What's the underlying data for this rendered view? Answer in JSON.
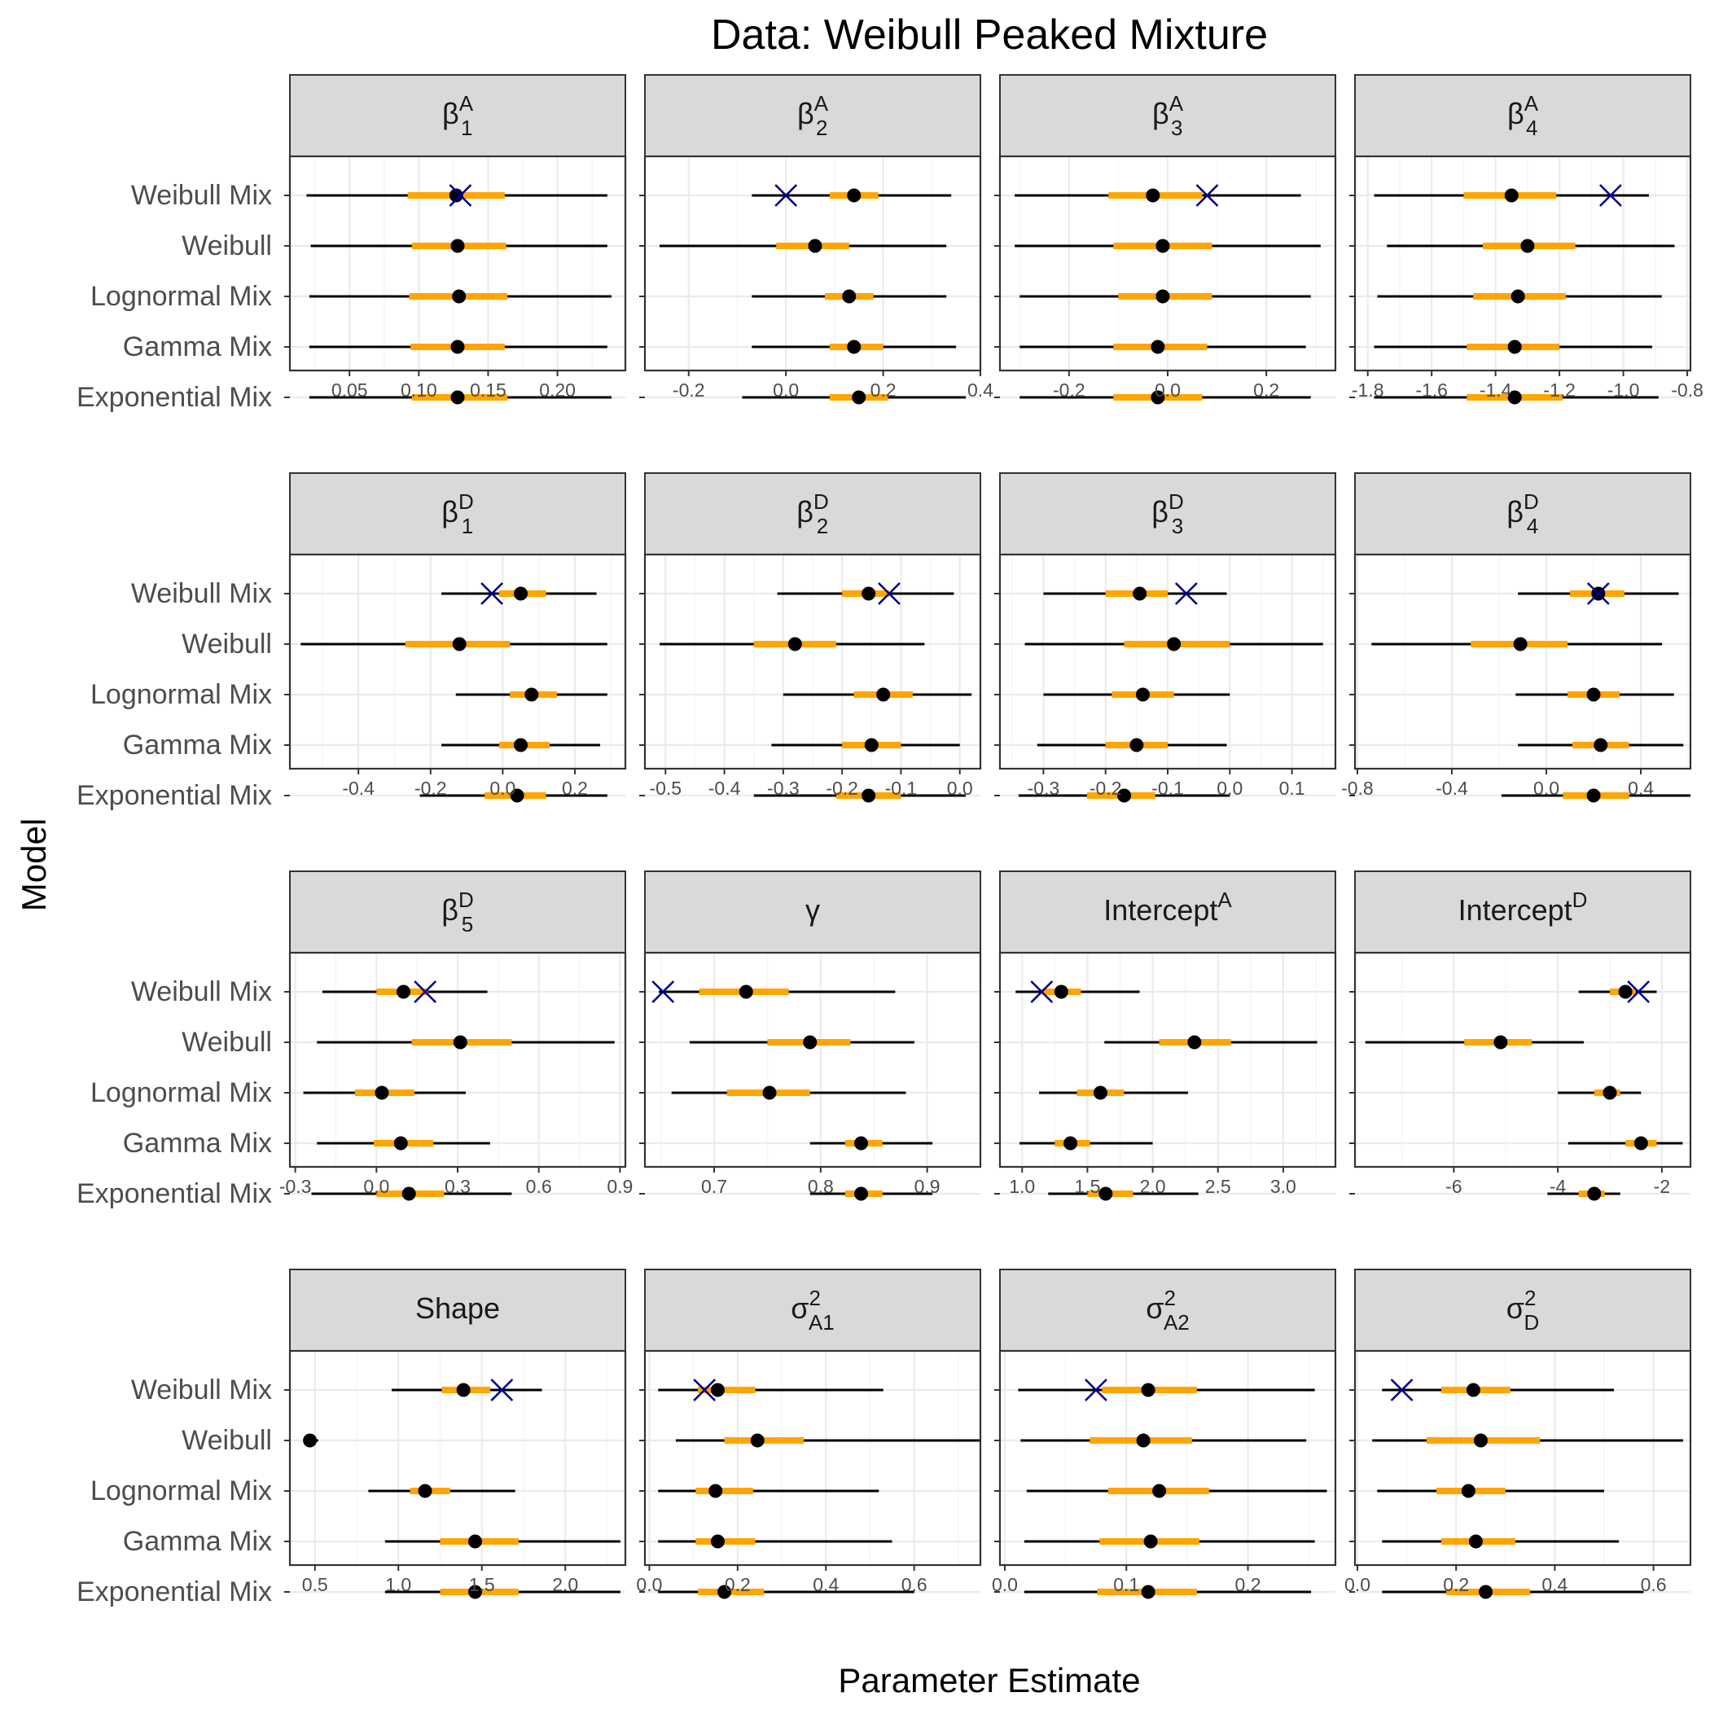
{
  "title": "Data: Weibull Peaked Mixture",
  "x_axis_title": "Parameter Estimate",
  "y_axis_title": "Model",
  "colors": {
    "interval_outer": "#000000",
    "interval_inner": "#FFA500",
    "point": "#000000",
    "true_value": "#00008B",
    "strip_fill": "#D9D9D9",
    "grid_major": "#EBEBEB",
    "grid_minor": "#F5F5F5"
  },
  "chart_data": {
    "type": "interval",
    "models": [
      "Weibull Mix",
      "Weibull",
      "Lognormal Mix",
      "Gamma Mix",
      "Exponential Mix"
    ],
    "panels": [
      {
        "label": "β",
        "sup": "A",
        "sub": "1",
        "xlim": [
          0.007,
          0.249
        ],
        "ticks": [
          0.05,
          0.1,
          0.15,
          0.2
        ],
        "tick_labels": [
          "0.05",
          "0.10",
          "0.15",
          "0.20"
        ],
        "true": 0.13,
        "rows": [
          [
            0.019,
            0.092,
            0.127,
            0.162,
            0.236
          ],
          [
            0.022,
            0.095,
            0.128,
            0.163,
            0.236
          ],
          [
            0.021,
            0.093,
            0.129,
            0.164,
            0.239
          ],
          [
            0.021,
            0.094,
            0.128,
            0.162,
            0.236
          ],
          [
            0.021,
            0.095,
            0.128,
            0.164,
            0.239
          ]
        ]
      },
      {
        "label": "β",
        "sup": "A",
        "sub": "2",
        "xlim": [
          -0.29,
          0.4
        ],
        "ticks": [
          -0.2,
          0.0,
          0.2,
          0.4
        ],
        "tick_labels": [
          "-0.2",
          "0.0",
          "0.2",
          "0.4"
        ],
        "true": 0.0,
        "rows": [
          [
            -0.07,
            0.09,
            0.14,
            0.19,
            0.34
          ],
          [
            -0.26,
            -0.02,
            0.06,
            0.13,
            0.33
          ],
          [
            -0.07,
            0.08,
            0.13,
            0.18,
            0.33
          ],
          [
            -0.07,
            0.09,
            0.14,
            0.2,
            0.35
          ],
          [
            -0.09,
            0.09,
            0.15,
            0.21,
            0.37
          ]
        ]
      },
      {
        "label": "β",
        "sup": "A",
        "sub": "3",
        "xlim": [
          -0.34,
          0.34
        ],
        "ticks": [
          -0.2,
          0.0,
          0.2
        ],
        "tick_labels": [
          "-0.2",
          "0.0",
          "0.2"
        ],
        "true": 0.08,
        "rows": [
          [
            -0.31,
            -0.12,
            -0.03,
            0.07,
            0.27
          ],
          [
            -0.31,
            -0.11,
            -0.01,
            0.09,
            0.31
          ],
          [
            -0.3,
            -0.1,
            -0.01,
            0.09,
            0.29
          ],
          [
            -0.3,
            -0.11,
            -0.02,
            0.08,
            0.28
          ],
          [
            -0.3,
            -0.11,
            -0.02,
            0.07,
            0.29
          ]
        ]
      },
      {
        "label": "β",
        "sup": "A",
        "sub": "4",
        "xlim": [
          -1.84,
          -0.79
        ],
        "ticks": [
          -1.8,
          -1.6,
          -1.4,
          -1.2,
          -1.0,
          -0.8
        ],
        "tick_labels": [
          "-1.8",
          "-1.6",
          "-1.4",
          "-1.2",
          "-1.0",
          "-0.8"
        ],
        "true": -1.04,
        "rows": [
          [
            -1.78,
            -1.5,
            -1.35,
            -1.21,
            -0.92
          ],
          [
            -1.74,
            -1.44,
            -1.3,
            -1.15,
            -0.84
          ],
          [
            -1.77,
            -1.47,
            -1.33,
            -1.18,
            -0.88
          ],
          [
            -1.78,
            -1.49,
            -1.34,
            -1.2,
            -0.91
          ],
          [
            -1.78,
            -1.49,
            -1.34,
            -1.19,
            -0.89
          ]
        ]
      },
      {
        "label": "β",
        "sup": "D",
        "sub": "1",
        "xlim": [
          -0.59,
          0.34
        ],
        "ticks": [
          -0.4,
          -0.2,
          0.0,
          0.2
        ],
        "tick_labels": [
          "-0.4",
          "-0.2",
          "0.0",
          "0.2"
        ],
        "true": -0.03,
        "rows": [
          [
            -0.17,
            -0.01,
            0.05,
            0.12,
            0.26
          ],
          [
            -0.56,
            -0.27,
            -0.12,
            0.02,
            0.29
          ],
          [
            -0.13,
            0.02,
            0.08,
            0.15,
            0.29
          ],
          [
            -0.17,
            -0.01,
            0.05,
            0.13,
            0.27
          ],
          [
            -0.23,
            -0.05,
            0.04,
            0.12,
            0.29
          ]
        ]
      },
      {
        "label": "β",
        "sup": "D",
        "sub": "2",
        "xlim": [
          -0.535,
          0.035
        ],
        "ticks": [
          -0.5,
          -0.4,
          -0.3,
          -0.2,
          -0.1,
          0.0
        ],
        "tick_labels": [
          "-0.5",
          "-0.4",
          "-0.3",
          "-0.2",
          "-0.1",
          "0.0"
        ],
        "true": -0.12,
        "rows": [
          [
            -0.31,
            -0.2,
            -0.155,
            -0.12,
            -0.01
          ],
          [
            -0.51,
            -0.35,
            -0.28,
            -0.21,
            -0.06
          ],
          [
            -0.3,
            -0.18,
            -0.13,
            -0.08,
            0.02
          ],
          [
            -0.32,
            -0.2,
            -0.15,
            -0.1,
            0.0
          ],
          [
            -0.35,
            -0.21,
            -0.155,
            -0.1,
            0.01
          ]
        ]
      },
      {
        "label": "β",
        "sup": "D",
        "sub": "3",
        "xlim": [
          -0.37,
          0.17
        ],
        "ticks": [
          -0.3,
          -0.2,
          -0.1,
          0.0,
          0.1
        ],
        "tick_labels": [
          "-0.3",
          "-0.2",
          "-0.1",
          "0.0",
          "0.1"
        ],
        "true": -0.07,
        "rows": [
          [
            -0.3,
            -0.2,
            -0.145,
            -0.1,
            -0.005
          ],
          [
            -0.33,
            -0.17,
            -0.09,
            0.0,
            0.15
          ],
          [
            -0.3,
            -0.19,
            -0.14,
            -0.09,
            0.0
          ],
          [
            -0.31,
            -0.2,
            -0.15,
            -0.1,
            -0.005
          ],
          [
            -0.34,
            -0.23,
            -0.17,
            -0.12,
            0.0
          ]
        ]
      },
      {
        "label": "β",
        "sup": "D",
        "sub": "4",
        "xlim": [
          -0.81,
          0.61
        ],
        "ticks": [
          -0.8,
          -0.4,
          0.0,
          0.4
        ],
        "tick_labels": [
          "-0.8",
          "-0.4",
          "0.0",
          "0.4"
        ],
        "true": 0.22,
        "rows": [
          [
            -0.12,
            0.1,
            0.22,
            0.33,
            0.56
          ],
          [
            -0.74,
            -0.32,
            -0.11,
            0.09,
            0.49
          ],
          [
            -0.13,
            0.09,
            0.2,
            0.31,
            0.54
          ],
          [
            -0.12,
            0.11,
            0.23,
            0.35,
            0.58
          ],
          [
            -0.19,
            0.07,
            0.2,
            0.35,
            0.61
          ]
        ]
      },
      {
        "label": "β",
        "sup": "D",
        "sub": "5",
        "xlim": [
          -0.32,
          0.92
        ],
        "ticks": [
          -0.3,
          0.0,
          0.3,
          0.6,
          0.9
        ],
        "tick_labels": [
          "-0.3",
          "0.0",
          "0.3",
          "0.6",
          "0.9"
        ],
        "true": 0.18,
        "rows": [
          [
            -0.2,
            0.0,
            0.1,
            0.19,
            0.41
          ],
          [
            -0.22,
            0.13,
            0.31,
            0.5,
            0.88
          ],
          [
            -0.27,
            -0.08,
            0.02,
            0.14,
            0.33
          ],
          [
            -0.22,
            -0.01,
            0.09,
            0.21,
            0.42
          ],
          [
            -0.24,
            0.0,
            0.12,
            0.25,
            0.5
          ]
        ]
      },
      {
        "label": "γ",
        "sup": "",
        "sub": "",
        "xlim": [
          0.635,
          0.95
        ],
        "ticks": [
          0.7,
          0.8,
          0.9
        ],
        "tick_labels": [
          "0.7",
          "0.8",
          "0.9"
        ],
        "true": 0.652,
        "rows": [
          [
            0.648,
            0.686,
            0.73,
            0.77,
            0.87
          ],
          [
            0.677,
            0.75,
            0.79,
            0.828,
            0.888
          ],
          [
            0.66,
            0.712,
            0.752,
            0.79,
            0.88
          ],
          [
            0.79,
            0.823,
            0.838,
            0.858,
            0.905
          ],
          [
            0.79,
            0.823,
            0.838,
            0.858,
            0.905
          ]
        ]
      },
      {
        "label": "Intercept",
        "sup": "A",
        "sub": "",
        "xlim": [
          0.83,
          3.4
        ],
        "ticks": [
          1.0,
          1.5,
          2.0,
          2.5,
          3.0
        ],
        "tick_labels": [
          "1.0",
          "1.5",
          "2.0",
          "2.5",
          "3.0"
        ],
        "true": 1.15,
        "rows": [
          [
            0.95,
            1.15,
            1.3,
            1.45,
            1.9
          ],
          [
            1.63,
            2.05,
            2.32,
            2.6,
            3.26
          ],
          [
            1.13,
            1.42,
            1.6,
            1.78,
            2.27
          ],
          [
            0.98,
            1.25,
            1.37,
            1.52,
            2.0
          ],
          [
            1.2,
            1.5,
            1.64,
            1.85,
            2.35
          ]
        ]
      },
      {
        "label": "Intercept",
        "sup": "D",
        "sub": "",
        "xlim": [
          -7.9,
          -1.45
        ],
        "ticks": [
          -6,
          -4,
          -2
        ],
        "tick_labels": [
          "-6",
          "-4",
          "-2"
        ],
        "true": -2.45,
        "rows": [
          [
            -3.6,
            -3.0,
            -2.7,
            -2.5,
            -2.1
          ],
          [
            -7.7,
            -5.8,
            -5.1,
            -4.5,
            -3.5
          ],
          [
            -4.0,
            -3.3,
            -3.0,
            -2.8,
            -2.4
          ],
          [
            -3.8,
            -2.7,
            -2.4,
            -2.1,
            -1.6
          ],
          [
            -4.2,
            -3.6,
            -3.3,
            -3.1,
            -2.8
          ]
        ]
      },
      {
        "label": "Shape",
        "sup": "",
        "sub": "",
        "xlim": [
          0.35,
          2.36
        ],
        "ticks": [
          0.5,
          1.0,
          1.5,
          2.0
        ],
        "tick_labels": [
          "0.5",
          "1.0",
          "1.5",
          "2.0"
        ],
        "true": 1.62,
        "rows": [
          [
            0.96,
            1.26,
            1.39,
            1.55,
            1.86
          ],
          [
            0.44,
            0.46,
            0.47,
            0.49,
            0.52
          ],
          [
            0.82,
            1.07,
            1.16,
            1.31,
            1.7
          ],
          [
            0.92,
            1.25,
            1.46,
            1.72,
            2.33
          ],
          [
            0.92,
            1.25,
            1.46,
            1.72,
            2.33
          ]
        ]
      },
      {
        "label": "σ",
        "sup": "2",
        "sub": "A1",
        "xlim": [
          -0.01,
          0.75
        ],
        "ticks": [
          0.0,
          0.2,
          0.4,
          0.6
        ],
        "tick_labels": [
          "0.0",
          "0.2",
          "0.4",
          "0.6"
        ],
        "true": 0.125,
        "rows": [
          [
            0.02,
            0.11,
            0.155,
            0.24,
            0.53
          ],
          [
            0.06,
            0.17,
            0.245,
            0.35,
            0.75
          ],
          [
            0.02,
            0.105,
            0.15,
            0.235,
            0.52
          ],
          [
            0.02,
            0.105,
            0.155,
            0.24,
            0.55
          ],
          [
            0.02,
            0.11,
            0.17,
            0.26,
            0.6
          ]
        ]
      },
      {
        "label": "σ",
        "sup": "2",
        "sub": "A2",
        "xlim": [
          -0.004,
          0.272
        ],
        "ticks": [
          0.0,
          0.1,
          0.2
        ],
        "tick_labels": [
          "0.0",
          "0.1",
          "0.2"
        ],
        "true": 0.075,
        "rows": [
          [
            0.011,
            0.08,
            0.118,
            0.158,
            0.255
          ],
          [
            0.013,
            0.07,
            0.114,
            0.154,
            0.248
          ],
          [
            0.018,
            0.085,
            0.127,
            0.168,
            0.265
          ],
          [
            0.016,
            0.078,
            0.12,
            0.16,
            0.255
          ],
          [
            0.016,
            0.076,
            0.118,
            0.158,
            0.252
          ]
        ]
      },
      {
        "label": "σ",
        "sup": "2",
        "sub": "D",
        "xlim": [
          -0.005,
          0.675
        ],
        "ticks": [
          0.0,
          0.2,
          0.4,
          0.6
        ],
        "tick_labels": [
          "0.0",
          "0.2",
          "0.4",
          "0.6"
        ],
        "true": 0.09,
        "rows": [
          [
            0.05,
            0.17,
            0.235,
            0.31,
            0.52
          ],
          [
            0.03,
            0.14,
            0.25,
            0.37,
            0.66
          ],
          [
            0.04,
            0.16,
            0.225,
            0.3,
            0.5
          ],
          [
            0.05,
            0.17,
            0.24,
            0.32,
            0.53
          ],
          [
            0.05,
            0.18,
            0.26,
            0.35,
            0.58
          ]
        ]
      }
    ]
  }
}
